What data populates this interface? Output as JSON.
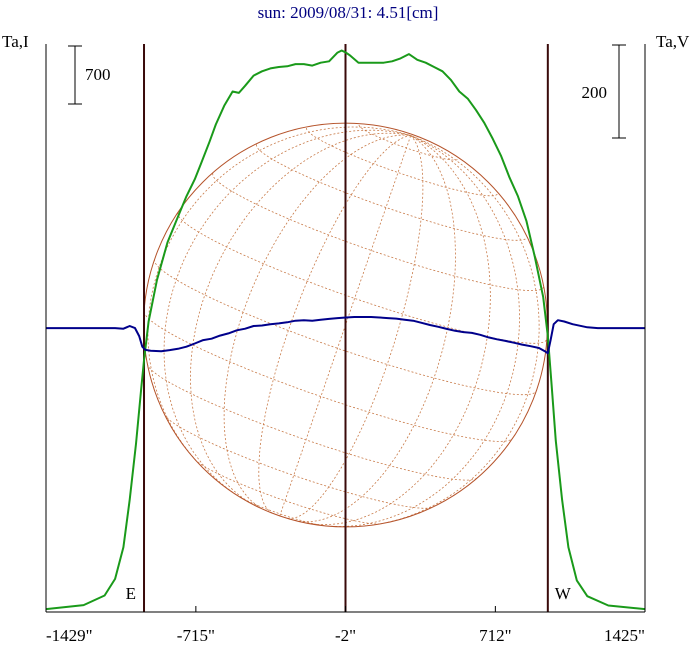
{
  "chart_data": {
    "type": "line",
    "title": "sun: 2009/08/31: 4.51[cm]",
    "left_axis_label": "Ta,I",
    "right_axis_label": "Ta,V",
    "x_ticks": [
      {
        "value": -1429,
        "label": "-1429\""
      },
      {
        "value": -715,
        "label": "-715\""
      },
      {
        "value": -2,
        "label": "-2\""
      },
      {
        "value": 712,
        "label": "712\""
      },
      {
        "value": 1425,
        "label": "1425\""
      }
    ],
    "xlim": [
      -1429,
      1425
    ],
    "scale_bars": [
      {
        "axis": "left",
        "value": 700,
        "label": "700"
      },
      {
        "axis": "right",
        "value": 200,
        "label": "200"
      }
    ],
    "limb_markers": [
      {
        "label": "E",
        "x": -962
      },
      {
        "label": "W",
        "x": 962
      }
    ],
    "center_line_x": -2,
    "disk": {
      "center_x": -2,
      "radius_arcsec": 962,
      "grid": true
    },
    "series": [
      {
        "key": "I",
        "color": "#1a9a1a",
        "ylim": [
          -20,
          3930
        ],
        "points": [
          [
            -1429,
            0
          ],
          [
            -1250,
            28
          ],
          [
            -1150,
            95
          ],
          [
            -1100,
            210
          ],
          [
            -1060,
            430
          ],
          [
            -1030,
            760
          ],
          [
            -1000,
            1150
          ],
          [
            -975,
            1540
          ],
          [
            -962,
            1730
          ],
          [
            -940,
            2000
          ],
          [
            -900,
            2290
          ],
          [
            -850,
            2550
          ],
          [
            -800,
            2730
          ],
          [
            -760,
            2870
          ],
          [
            -720,
            2990
          ],
          [
            -690,
            3100
          ],
          [
            -650,
            3250
          ],
          [
            -620,
            3370
          ],
          [
            -580,
            3500
          ],
          [
            -540,
            3600
          ],
          [
            -510,
            3590
          ],
          [
            -480,
            3640
          ],
          [
            -440,
            3710
          ],
          [
            -400,
            3740
          ],
          [
            -360,
            3760
          ],
          [
            -320,
            3770
          ],
          [
            -280,
            3775
          ],
          [
            -240,
            3790
          ],
          [
            -200,
            3790
          ],
          [
            -160,
            3780
          ],
          [
            -120,
            3800
          ],
          [
            -80,
            3810
          ],
          [
            -40,
            3870
          ],
          [
            -20,
            3885
          ],
          [
            0,
            3870
          ],
          [
            20,
            3850
          ],
          [
            60,
            3800
          ],
          [
            100,
            3800
          ],
          [
            140,
            3800
          ],
          [
            180,
            3800
          ],
          [
            220,
            3810
          ],
          [
            260,
            3830
          ],
          [
            300,
            3860
          ],
          [
            340,
            3820
          ],
          [
            380,
            3800
          ],
          [
            420,
            3770
          ],
          [
            460,
            3740
          ],
          [
            500,
            3680
          ],
          [
            540,
            3600
          ],
          [
            580,
            3550
          ],
          [
            620,
            3470
          ],
          [
            660,
            3380
          ],
          [
            700,
            3270
          ],
          [
            740,
            3150
          ],
          [
            780,
            3000
          ],
          [
            820,
            2870
          ],
          [
            860,
            2700
          ],
          [
            900,
            2450
          ],
          [
            940,
            2170
          ],
          [
            962,
            1900
          ],
          [
            980,
            1560
          ],
          [
            1000,
            1170
          ],
          [
            1030,
            760
          ],
          [
            1060,
            430
          ],
          [
            1100,
            200
          ],
          [
            1150,
            90
          ],
          [
            1250,
            25
          ],
          [
            1425,
            0
          ]
        ]
      },
      {
        "key": "V",
        "color": "#00008b",
        "ylim": [
          -1071,
          1072
        ],
        "points": [
          [
            -1429,
            0
          ],
          [
            -1100,
            0
          ],
          [
            -1060,
            -2
          ],
          [
            -1030,
            8
          ],
          [
            -1005,
            0
          ],
          [
            -985,
            -30
          ],
          [
            -970,
            -70
          ],
          [
            -955,
            -82
          ],
          [
            -930,
            -85
          ],
          [
            -880,
            -87
          ],
          [
            -840,
            -83
          ],
          [
            -800,
            -78
          ],
          [
            -760,
            -70
          ],
          [
            -720,
            -58
          ],
          [
            -680,
            -45
          ],
          [
            -640,
            -40
          ],
          [
            -600,
            -28
          ],
          [
            -560,
            -20
          ],
          [
            -520,
            -8
          ],
          [
            -480,
            -2
          ],
          [
            -440,
            8
          ],
          [
            -400,
            10
          ],
          [
            -360,
            15
          ],
          [
            -320,
            18
          ],
          [
            -280,
            22
          ],
          [
            -240,
            28
          ],
          [
            -200,
            30
          ],
          [
            -160,
            28
          ],
          [
            -120,
            32
          ],
          [
            -80,
            35
          ],
          [
            -40,
            38
          ],
          [
            0,
            40
          ],
          [
            40,
            42
          ],
          [
            80,
            42
          ],
          [
            120,
            42
          ],
          [
            160,
            40
          ],
          [
            200,
            38
          ],
          [
            240,
            36
          ],
          [
            280,
            32
          ],
          [
            320,
            28
          ],
          [
            360,
            20
          ],
          [
            400,
            12
          ],
          [
            440,
            5
          ],
          [
            480,
            -3
          ],
          [
            520,
            -10
          ],
          [
            560,
            -15
          ],
          [
            600,
            -18
          ],
          [
            640,
            -25
          ],
          [
            680,
            -35
          ],
          [
            720,
            -42
          ],
          [
            760,
            -48
          ],
          [
            800,
            -55
          ],
          [
            840,
            -62
          ],
          [
            880,
            -68
          ],
          [
            920,
            -75
          ],
          [
            950,
            -88
          ],
          [
            962,
            -95
          ],
          [
            975,
            -45
          ],
          [
            990,
            15
          ],
          [
            1010,
            30
          ],
          [
            1040,
            25
          ],
          [
            1080,
            15
          ],
          [
            1150,
            3
          ],
          [
            1200,
            0
          ],
          [
            1425,
            0
          ]
        ]
      }
    ]
  }
}
